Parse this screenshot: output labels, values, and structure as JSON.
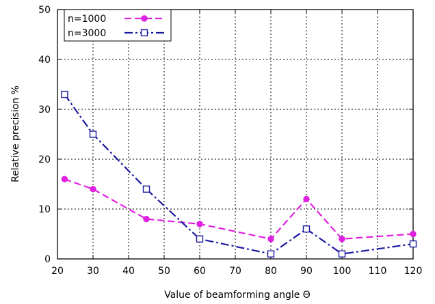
{
  "chart_data": {
    "type": "line",
    "title": "",
    "xlabel": "Value of beamforming angle Θ",
    "ylabel": "Relative precision %",
    "xlim": [
      20,
      120
    ],
    "ylim": [
      0,
      50
    ],
    "xticks": [
      20,
      30,
      40,
      50,
      60,
      70,
      80,
      90,
      100,
      110,
      120
    ],
    "yticks": [
      0,
      10,
      20,
      30,
      40,
      50
    ],
    "grid": true,
    "legend_position": "top-left",
    "series": [
      {
        "name": "n=1000",
        "color": "#e020e0",
        "dash": "dashed",
        "marker": "filled-circle",
        "x": [
          22,
          30,
          45,
          60,
          80,
          90,
          100,
          120
        ],
        "y": [
          16,
          14,
          8,
          7,
          4,
          12,
          4,
          5
        ]
      },
      {
        "name": "n=3000",
        "color": "#1a1aa0",
        "dash": "dash-dot",
        "marker": "open-square",
        "x": [
          22,
          30,
          45,
          60,
          80,
          90,
          100,
          120
        ],
        "y": [
          33,
          25,
          14,
          4,
          1,
          6,
          1,
          3
        ]
      }
    ]
  }
}
